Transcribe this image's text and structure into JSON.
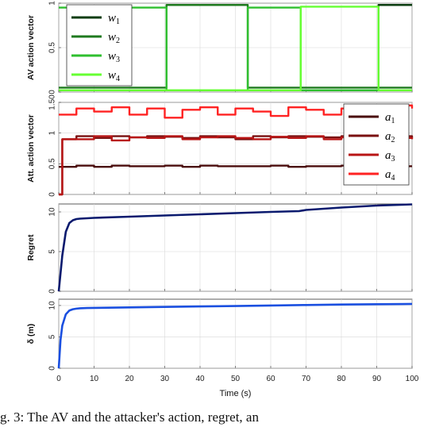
{
  "caption": "g. 3: The AV and the attacker's action, regret, an",
  "colors": {
    "w1": "#0b3d10",
    "w2": "#1f7a1f",
    "w3": "#2fbf2f",
    "w4": "#66ff33",
    "a1": "#4a0c0c",
    "a2": "#7a1010",
    "a3": "#b81414",
    "a4": "#ff2222",
    "regret": "#0a1a6e",
    "delta": "#1a4fe0"
  },
  "chart_data": [
    {
      "type": "line",
      "ylabel": "AV action vector",
      "ylim": [
        0,
        1
      ],
      "yticks": [
        "0",
        "0.5",
        "1"
      ],
      "xlim": [
        0,
        100
      ],
      "grid": true,
      "legend": {
        "placement": "top-left",
        "entries": [
          {
            "key": "w1",
            "label": "w",
            "sub": "1"
          },
          {
            "key": "w2",
            "label": "w",
            "sub": "2"
          },
          {
            "key": "w3",
            "label": "w",
            "sub": "3"
          },
          {
            "key": "w4",
            "label": "w",
            "sub": "4"
          }
        ]
      },
      "series": [
        {
          "key": "w1",
          "x": [
            0,
            30,
            30.5,
            53,
            53.5,
            90,
            90.5,
            100
          ],
          "y": [
            0.02,
            0.02,
            0.02,
            0.02,
            0.02,
            0.02,
            0.98,
            0.98
          ]
        },
        {
          "key": "w2",
          "x": [
            0,
            30,
            30.5,
            53,
            53.5,
            100
          ],
          "y": [
            0.05,
            0.05,
            0.98,
            0.98,
            0.05,
            0.05
          ]
        },
        {
          "key": "w3",
          "x": [
            0,
            30,
            30.5,
            53,
            53.5,
            68,
            68.5,
            90,
            90.5,
            100
          ],
          "y": [
            0.95,
            0.95,
            0.02,
            0.02,
            0.95,
            0.95,
            0.02,
            0.02,
            0.02,
            0.02
          ]
        },
        {
          "key": "w4",
          "x": [
            0,
            68,
            68.5,
            90,
            90.5,
            100
          ],
          "y": [
            0.02,
            0.02,
            0.96,
            0.96,
            0.02,
            0.02
          ]
        }
      ]
    },
    {
      "type": "line",
      "ylabel": "Att. action vector",
      "ylim": [
        0,
        1.5
      ],
      "yticks": [
        "0",
        "0.5",
        "1",
        "1.50"
      ],
      "xlim": [
        0,
        100
      ],
      "grid": true,
      "legend": {
        "placement": "top-right",
        "entries": [
          {
            "key": "a1",
            "label": "a",
            "sub": "1"
          },
          {
            "key": "a2",
            "label": "a",
            "sub": "2"
          },
          {
            "key": "a3",
            "label": "a",
            "sub": "3"
          },
          {
            "key": "a4",
            "label": "a",
            "sub": "4"
          }
        ]
      },
      "series": [
        {
          "key": "a1",
          "x": [
            0,
            1,
            1,
            5,
            10,
            15,
            20,
            25,
            30,
            35,
            40,
            45,
            50,
            55,
            60,
            65,
            70,
            75,
            80,
            85,
            90,
            95,
            100
          ],
          "y": [
            0.45,
            0.45,
            0.45,
            0.47,
            0.45,
            0.47,
            0.46,
            0.46,
            0.47,
            0.45,
            0.47,
            0.46,
            0.46,
            0.46,
            0.47,
            0.45,
            0.46,
            0.46,
            0.47,
            0.46,
            0.47,
            0.46,
            0.46
          ]
        },
        {
          "key": "a2",
          "x": [
            0,
            1,
            1,
            5,
            10,
            15,
            20,
            25,
            30,
            35,
            40,
            45,
            50,
            55,
            60,
            65,
            70,
            75,
            80,
            85,
            90,
            95,
            100
          ],
          "y": [
            0.0,
            0.0,
            0.9,
            0.95,
            0.92,
            0.95,
            0.93,
            0.95,
            0.94,
            0.92,
            0.95,
            0.93,
            0.9,
            0.95,
            0.93,
            0.95,
            0.94,
            0.93,
            0.95,
            0.94,
            0.9,
            0.95,
            0.92
          ]
        },
        {
          "key": "a3",
          "x": [
            0,
            1,
            1,
            5,
            10,
            15,
            20,
            25,
            30,
            35,
            40,
            45,
            50,
            55,
            60,
            65,
            70,
            75,
            80,
            85,
            90,
            95,
            100
          ],
          "y": [
            0.0,
            0.0,
            0.9,
            0.9,
            0.95,
            0.88,
            0.93,
            0.92,
            0.95,
            0.9,
            0.93,
            0.95,
            0.92,
            0.9,
            0.94,
            0.92,
            0.95,
            0.9,
            0.93,
            0.9,
            0.95,
            0.92,
            0.9
          ]
        },
        {
          "key": "a4",
          "x": [
            0,
            1,
            1,
            5,
            10,
            15,
            20,
            25,
            30,
            35,
            40,
            45,
            50,
            55,
            60,
            65,
            70,
            75,
            80,
            85,
            90,
            95,
            100
          ],
          "y": [
            1.3,
            1.3,
            1.3,
            1.4,
            1.35,
            1.42,
            1.3,
            1.4,
            1.25,
            1.38,
            1.42,
            1.3,
            1.4,
            1.35,
            1.28,
            1.42,
            1.38,
            1.3,
            1.4,
            1.42,
            1.35,
            1.45,
            1.4
          ]
        }
      ]
    },
    {
      "type": "line",
      "ylabel": "Regret",
      "ylim": [
        0,
        11
      ],
      "yticks": [
        "0",
        "5",
        "10"
      ],
      "xlim": [
        0,
        100
      ],
      "grid": true,
      "series": [
        {
          "key": "regret",
          "x": [
            0,
            1,
            2,
            3,
            4,
            5,
            6,
            8,
            10,
            20,
            30,
            40,
            50,
            60,
            68,
            70,
            80,
            90,
            100
          ],
          "y": [
            0,
            4.5,
            7.5,
            8.6,
            8.95,
            9.1,
            9.15,
            9.2,
            9.25,
            9.4,
            9.55,
            9.7,
            9.85,
            10.0,
            10.1,
            10.25,
            10.55,
            10.8,
            10.95
          ]
        }
      ]
    },
    {
      "type": "line",
      "ylabel": "δ (m)",
      "ylim": [
        0,
        11
      ],
      "yticks": [
        "0",
        "5",
        "10"
      ],
      "xlim": [
        0,
        100
      ],
      "xticks": [
        "0",
        "10",
        "20",
        "30",
        "40",
        "50",
        "60",
        "70",
        "80",
        "90",
        "100"
      ],
      "xlabel": "Time (s)",
      "grid": true,
      "series": [
        {
          "key": "delta",
          "x": [
            0,
            0.5,
            1,
            2,
            3,
            4,
            5,
            6,
            8,
            10,
            20,
            30,
            40,
            50,
            60,
            70,
            80,
            90,
            100
          ],
          "y": [
            0,
            4.5,
            6.8,
            8.6,
            9.2,
            9.4,
            9.5,
            9.55,
            9.6,
            9.62,
            9.7,
            9.78,
            9.85,
            9.92,
            10.0,
            10.08,
            10.15,
            10.2,
            10.25
          ]
        }
      ]
    }
  ]
}
